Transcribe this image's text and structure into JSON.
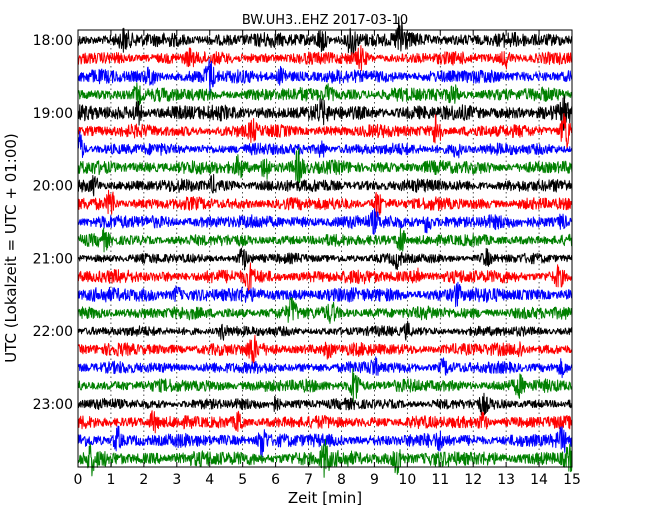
{
  "chart_data": {
    "type": "line",
    "title": "BW.UH3..EHZ 2017-03-10",
    "xlabel": "Zeit  [min]",
    "ylabel": "UTC (Lokalzeit = UTC + 01:00)",
    "xlim": [
      0,
      15
    ],
    "x_ticks": [
      "0",
      "1",
      "2",
      "3",
      "4",
      "5",
      "6",
      "7",
      "8",
      "9",
      "10",
      "11",
      "12",
      "13",
      "14",
      "15"
    ],
    "y_ticks": [
      "18:00",
      "19:00",
      "20:00",
      "21:00",
      "22:00",
      "23:00"
    ],
    "grid": "vertical dotted",
    "trace_interval_min": 15,
    "traces": [
      {
        "start": "18:00",
        "color": "#000000",
        "amp": 0.32,
        "events": [
          [
            1.4,
            0.45
          ],
          [
            8.3,
            1.0
          ],
          [
            9.8,
            1.4
          ],
          [
            7.4,
            0.6
          ]
        ]
      },
      {
        "start": "18:15",
        "color": "#ff0000",
        "amp": 0.28,
        "events": [
          [
            3.4,
            0.4
          ],
          [
            8.6,
            0.5
          ],
          [
            13.0,
            0.4
          ]
        ]
      },
      {
        "start": "18:30",
        "color": "#0000ff",
        "amp": 0.3,
        "events": [
          [
            4.0,
            0.9
          ],
          [
            2.2,
            0.5
          ],
          [
            6.2,
            0.5
          ]
        ]
      },
      {
        "start": "18:45",
        "color": "#008000",
        "amp": 0.3,
        "events": [
          [
            1.8,
            0.5
          ],
          [
            7.6,
            0.5
          ],
          [
            11.4,
            0.4
          ]
        ]
      },
      {
        "start": "19:00",
        "color": "#000000",
        "amp": 0.34,
        "events": [
          [
            1.8,
            0.6
          ],
          [
            7.4,
            0.4
          ],
          [
            14.8,
            0.7
          ]
        ]
      },
      {
        "start": "19:15",
        "color": "#ff0000",
        "amp": 0.28,
        "events": [
          [
            5.3,
            0.5
          ],
          [
            10.9,
            1.1
          ],
          [
            14.8,
            1.2
          ]
        ]
      },
      {
        "start": "19:30",
        "color": "#0000ff",
        "amp": 0.26,
        "events": [
          [
            0.05,
            0.9
          ],
          [
            7.4,
            0.4
          ],
          [
            11.5,
            0.4
          ]
        ]
      },
      {
        "start": "19:45",
        "color": "#008000",
        "amp": 0.3,
        "events": [
          [
            4.9,
            0.5
          ],
          [
            5.7,
            0.8
          ],
          [
            6.7,
            0.9
          ]
        ]
      },
      {
        "start": "20:00",
        "color": "#000000",
        "amp": 0.28,
        "events": [
          [
            0.5,
            0.4
          ],
          [
            4.1,
            0.4
          ]
        ]
      },
      {
        "start": "20:15",
        "color": "#ff0000",
        "amp": 0.28,
        "events": [
          [
            1.0,
            0.8
          ],
          [
            9.1,
            0.7
          ]
        ]
      },
      {
        "start": "20:30",
        "color": "#0000ff",
        "amp": 0.3,
        "events": [
          [
            9.0,
            0.5
          ],
          [
            10.6,
            0.6
          ],
          [
            14.7,
            0.4
          ]
        ]
      },
      {
        "start": "20:45",
        "color": "#008000",
        "amp": 0.26,
        "events": [
          [
            9.8,
            0.9
          ],
          [
            0.8,
            0.4
          ]
        ]
      },
      {
        "start": "21:00",
        "color": "#000000",
        "amp": 0.22,
        "events": [
          [
            5.0,
            0.6
          ],
          [
            9.7,
            0.4
          ],
          [
            12.4,
            0.4
          ]
        ]
      },
      {
        "start": "21:15",
        "color": "#ff0000",
        "amp": 0.3,
        "events": [
          [
            5.2,
            0.6
          ],
          [
            10.3,
            0.5
          ],
          [
            14.6,
            0.5
          ]
        ]
      },
      {
        "start": "21:30",
        "color": "#0000ff",
        "amp": 0.32,
        "events": [
          [
            3.0,
            0.4
          ],
          [
            11.5,
            0.5
          ]
        ]
      },
      {
        "start": "21:45",
        "color": "#008000",
        "amp": 0.28,
        "events": [
          [
            6.5,
            0.7
          ],
          [
            7.7,
            0.4
          ]
        ]
      },
      {
        "start": "22:00",
        "color": "#000000",
        "amp": 0.22,
        "events": [
          [
            4.4,
            0.4
          ],
          [
            10.0,
            0.4
          ]
        ]
      },
      {
        "start": "22:15",
        "color": "#ff0000",
        "amp": 0.28,
        "events": [
          [
            5.3,
            0.7
          ],
          [
            7.6,
            0.4
          ],
          [
            13.4,
            0.4
          ]
        ]
      },
      {
        "start": "22:30",
        "color": "#0000ff",
        "amp": 0.26,
        "events": [
          [
            9.0,
            0.4
          ],
          [
            11.1,
            0.4
          ],
          [
            14.7,
            0.4
          ]
        ]
      },
      {
        "start": "22:45",
        "color": "#008000",
        "amp": 0.28,
        "events": [
          [
            8.4,
            1.1
          ],
          [
            13.4,
            0.5
          ]
        ]
      },
      {
        "start": "23:00",
        "color": "#000000",
        "amp": 0.24,
        "events": [
          [
            6.0,
            0.4
          ],
          [
            12.3,
            0.4
          ]
        ]
      },
      {
        "start": "23:15",
        "color": "#ff0000",
        "amp": 0.28,
        "events": [
          [
            2.3,
            0.6
          ],
          [
            4.9,
            0.6
          ],
          [
            12.3,
            0.5
          ]
        ]
      },
      {
        "start": "23:30",
        "color": "#0000ff",
        "amp": 0.3,
        "events": [
          [
            1.2,
            0.7
          ],
          [
            5.6,
            0.9
          ],
          [
            11.0,
            0.4
          ],
          [
            14.7,
            0.5
          ]
        ]
      },
      {
        "start": "23:45",
        "color": "#008000",
        "amp": 0.34,
        "events": [
          [
            0.4,
            0.6
          ],
          [
            7.5,
            0.9
          ],
          [
            9.7,
            0.8
          ],
          [
            14.9,
            0.5
          ]
        ]
      }
    ]
  }
}
